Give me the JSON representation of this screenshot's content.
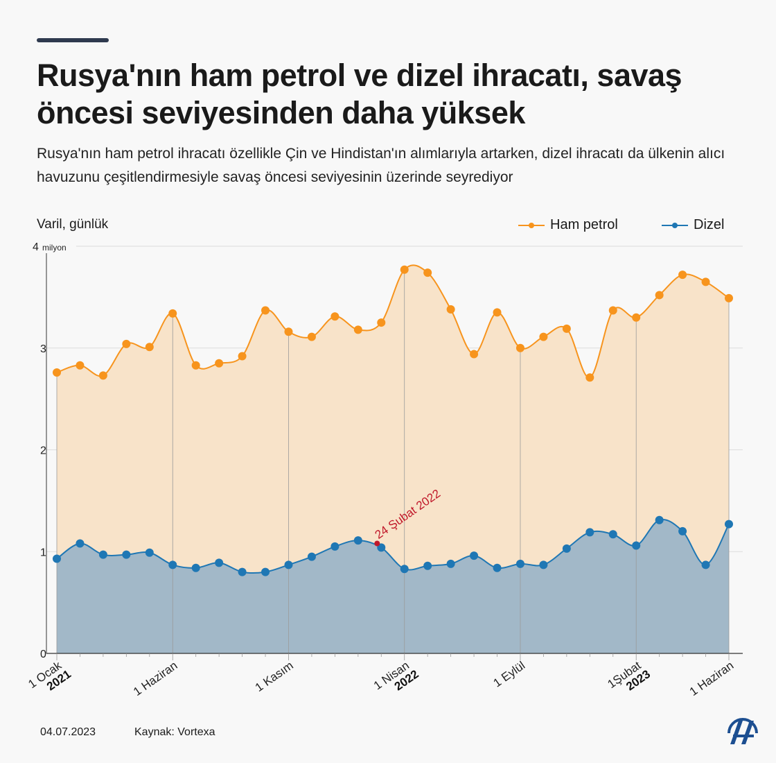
{
  "header": {
    "title": "Rusya'nın ham petrol ve dizel ihracatı, savaş öncesi seviyesinden daha yüksek",
    "subtitle": "Rusya'nın ham petrol ihracatı özellikle Çin ve Hindistan'ın alımlarıyla artarken, dizel ihracatı da ülkenin alıcı havuzunu çeşitlendirmesiyle savaş öncesi seviyesinin üzerinde seyrediyor"
  },
  "footer": {
    "date": "04.07.2023",
    "source": "Kaynak: Vortexa",
    "logo": "AA"
  },
  "colors": {
    "ham_petrol": "#f7941d",
    "ham_petrol_fill": "#f8e3c9",
    "dizel": "#1f77b4",
    "dizel_fill": "#a2b8c8",
    "annotation": "#c0182a"
  },
  "chart_data": {
    "type": "area",
    "ylabel": "Varil, günlük",
    "y_unit": "milyon",
    "ylim": [
      0,
      4
    ],
    "yticks": [
      0,
      1,
      2,
      3,
      4
    ],
    "grid": true,
    "legend_position": "top-right",
    "x": [
      "2021-01",
      "2021-02",
      "2021-03",
      "2021-04",
      "2021-05",
      "2021-06",
      "2021-07",
      "2021-08",
      "2021-09",
      "2021-10",
      "2021-11",
      "2021-12",
      "2022-01",
      "2022-02",
      "2022-03",
      "2022-04",
      "2022-05",
      "2022-06",
      "2022-07",
      "2022-08",
      "2022-09",
      "2022-10",
      "2022-11",
      "2022-12",
      "2023-01",
      "2023-02",
      "2023-03",
      "2023-04",
      "2023-05",
      "2023-06"
    ],
    "xtick_labels": [
      {
        "index": 0,
        "label": "1 Ocak",
        "year": "2021"
      },
      {
        "index": 5,
        "label": "1 Haziran",
        "year": ""
      },
      {
        "index": 10,
        "label": "1 Kasım",
        "year": ""
      },
      {
        "index": 15,
        "label": "1 Nisan",
        "year": "2022"
      },
      {
        "index": 20,
        "label": "1 Eylül",
        "year": ""
      },
      {
        "index": 25,
        "label": "1Şubat",
        "year": "2023"
      },
      {
        "index": 29,
        "label": "1 Haziran",
        "year": ""
      }
    ],
    "series": [
      {
        "name": "Ham petrol",
        "values": [
          2.76,
          2.83,
          2.73,
          3.04,
          3.01,
          3.34,
          2.83,
          2.85,
          2.92,
          3.37,
          3.16,
          3.11,
          3.31,
          3.18,
          3.25,
          3.77,
          3.74,
          3.38,
          2.94,
          3.35,
          3.0,
          3.11,
          3.19,
          2.71,
          3.37,
          3.3,
          3.52,
          3.72,
          3.65,
          3.49
        ]
      },
      {
        "name": "Dizel",
        "values": [
          0.93,
          1.08,
          0.97,
          0.97,
          0.99,
          0.87,
          0.84,
          0.89,
          0.8,
          0.8,
          0.87,
          0.95,
          1.05,
          1.11,
          1.04,
          0.83,
          0.86,
          0.88,
          0.96,
          0.84,
          0.88,
          0.87,
          1.03,
          1.19,
          1.17,
          1.06,
          1.31,
          1.2,
          0.87,
          1.27
        ]
      }
    ],
    "annotation": {
      "label": "24 Şubat 2022",
      "x": "2022-02-24",
      "y": 1.08
    }
  }
}
